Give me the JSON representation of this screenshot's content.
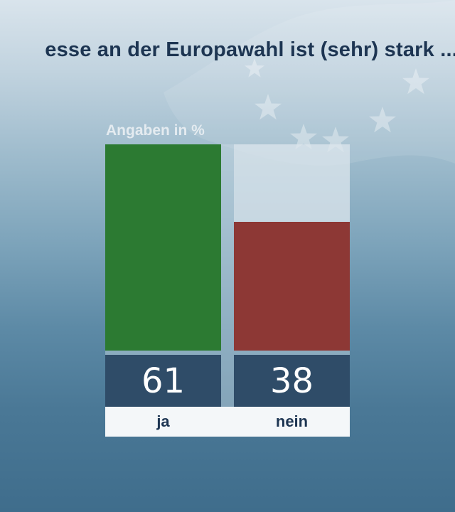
{
  "title": "esse an der Europawahl ist (sehr) stark ...",
  "chart_data": {
    "type": "bar",
    "unit_label": "Angaben in %",
    "categories": [
      "ja",
      "nein"
    ],
    "values": [
      61,
      38
    ],
    "ylim": [
      0,
      61
    ],
    "colors": [
      "#2c7a32",
      "#8d3835"
    ],
    "grid": false,
    "legend": "none"
  }
}
